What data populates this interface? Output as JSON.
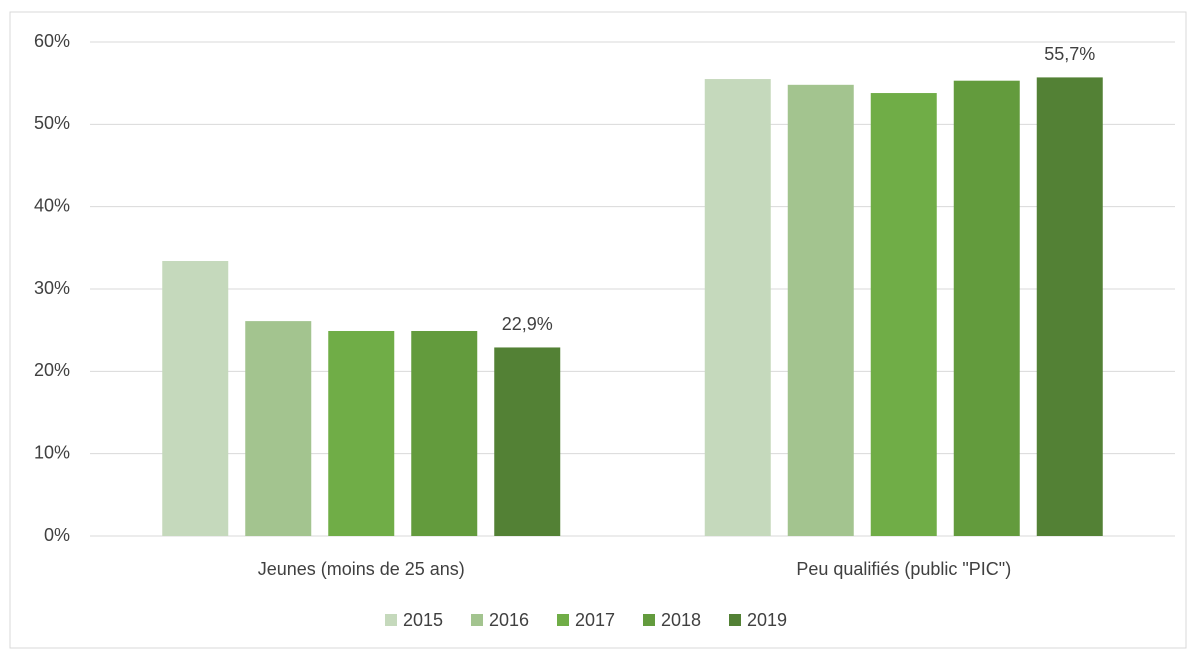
{
  "chart_data": {
    "type": "bar",
    "categories": [
      "Jeunes (moins de 25 ans)",
      "Peu qualifiés (public \"PIC\")"
    ],
    "series": [
      {
        "name": "2015",
        "color": "#c5d9bc",
        "values": [
          33.4,
          55.5
        ]
      },
      {
        "name": "2016",
        "color": "#a3c48f",
        "values": [
          26.1,
          54.8
        ]
      },
      {
        "name": "2017",
        "color": "#70ad47",
        "values": [
          24.9,
          53.8
        ]
      },
      {
        "name": "2018",
        "color": "#639b3d",
        "values": [
          24.9,
          55.3
        ]
      },
      {
        "name": "2019",
        "color": "#538135",
        "values": [
          22.9,
          55.7
        ],
        "value_labels": [
          "22,9%",
          "55,7%"
        ]
      }
    ],
    "ylim": [
      0,
      60
    ],
    "yticks": [
      {
        "value": 0,
        "label": "0%"
      },
      {
        "value": 10,
        "label": "10%"
      },
      {
        "value": 20,
        "label": "20%"
      },
      {
        "value": 30,
        "label": "30%"
      },
      {
        "value": 40,
        "label": "40%"
      },
      {
        "value": 50,
        "label": "50%"
      },
      {
        "value": 60,
        "label": "60%"
      }
    ],
    "grid": true,
    "legend": "bottom"
  }
}
